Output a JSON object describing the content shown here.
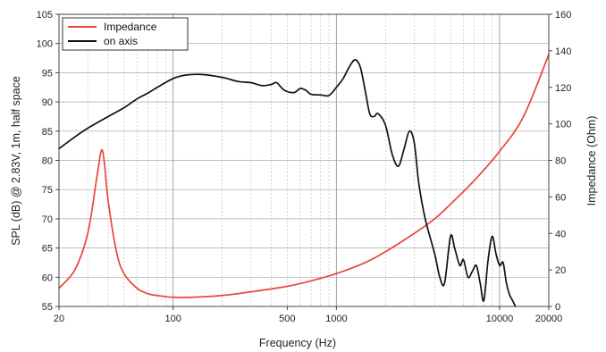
{
  "chart_data": {
    "type": "line",
    "xscale": "log",
    "xlim": [
      20,
      20000
    ],
    "xlabel": "Frequency (Hz)",
    "xticks": [
      20,
      100,
      500,
      1000,
      10000,
      20000
    ],
    "ylim_left": [
      55,
      105
    ],
    "ylabel_left": "SPL (dB) @ 2.83V, 1m, half space",
    "yticks_left": [
      55,
      60,
      65,
      70,
      75,
      80,
      85,
      90,
      95,
      100,
      105
    ],
    "ylim_right": [
      0,
      160
    ],
    "ylabel_right": "Impedance (Ohm)",
    "yticks_right": [
      0,
      20,
      40,
      60,
      80,
      100,
      120,
      140,
      160
    ],
    "grid": true,
    "legend_position": "top-left",
    "series": [
      {
        "name": "Impedance",
        "axis": "right",
        "color": "#e8463a",
        "points": [
          [
            20,
            10
          ],
          [
            25,
            20
          ],
          [
            30,
            40
          ],
          [
            34,
            70
          ],
          [
            36,
            84
          ],
          [
            37,
            85
          ],
          [
            38,
            78
          ],
          [
            40,
            58
          ],
          [
            45,
            30
          ],
          [
            50,
            18
          ],
          [
            60,
            10
          ],
          [
            70,
            7
          ],
          [
            80,
            6
          ],
          [
            100,
            5
          ],
          [
            130,
            5
          ],
          [
            200,
            6
          ],
          [
            300,
            8
          ],
          [
            500,
            11
          ],
          [
            700,
            14
          ],
          [
            1000,
            18
          ],
          [
            1500,
            24
          ],
          [
            2000,
            30
          ],
          [
            3000,
            40
          ],
          [
            4000,
            48
          ],
          [
            5000,
            56
          ],
          [
            7000,
            69
          ],
          [
            10000,
            85
          ],
          [
            14000,
            104
          ],
          [
            20000,
            138
          ]
        ]
      },
      {
        "name": "on axis",
        "axis": "left",
        "color": "#111111",
        "points": [
          [
            20,
            82
          ],
          [
            25,
            84
          ],
          [
            30,
            85.5
          ],
          [
            40,
            87.5
          ],
          [
            50,
            89
          ],
          [
            60,
            90.5
          ],
          [
            70,
            91.5
          ],
          [
            80,
            92.5
          ],
          [
            100,
            94
          ],
          [
            120,
            94.6
          ],
          [
            150,
            94.7
          ],
          [
            200,
            94.2
          ],
          [
            250,
            93.5
          ],
          [
            300,
            93.3
          ],
          [
            350,
            92.8
          ],
          [
            400,
            93
          ],
          [
            430,
            93.3
          ],
          [
            480,
            92
          ],
          [
            550,
            91.6
          ],
          [
            600,
            92.3
          ],
          [
            650,
            92
          ],
          [
            700,
            91.3
          ],
          [
            800,
            91.2
          ],
          [
            900,
            91.1
          ],
          [
            1000,
            92.5
          ],
          [
            1100,
            94
          ],
          [
            1200,
            96
          ],
          [
            1300,
            97.2
          ],
          [
            1400,
            96
          ],
          [
            1500,
            92
          ],
          [
            1600,
            88
          ],
          [
            1700,
            87.5
          ],
          [
            1800,
            88
          ],
          [
            2000,
            86
          ],
          [
            2200,
            81
          ],
          [
            2400,
            79
          ],
          [
            2600,
            82
          ],
          [
            2800,
            85
          ],
          [
            3000,
            83
          ],
          [
            3200,
            76
          ],
          [
            3500,
            70
          ],
          [
            4000,
            64
          ],
          [
            4300,
            60
          ],
          [
            4600,
            59
          ],
          [
            5000,
            67
          ],
          [
            5300,
            65
          ],
          [
            5700,
            62
          ],
          [
            6000,
            63
          ],
          [
            6400,
            60
          ],
          [
            6800,
            61
          ],
          [
            7200,
            62
          ],
          [
            7600,
            59
          ],
          [
            8000,
            56
          ],
          [
            8500,
            63
          ],
          [
            9000,
            67
          ],
          [
            9500,
            64
          ],
          [
            10000,
            62
          ],
          [
            10500,
            62.5
          ],
          [
            11000,
            59
          ],
          [
            11500,
            57
          ],
          [
            12000,
            56
          ],
          [
            12500,
            55
          ]
        ]
      }
    ]
  }
}
